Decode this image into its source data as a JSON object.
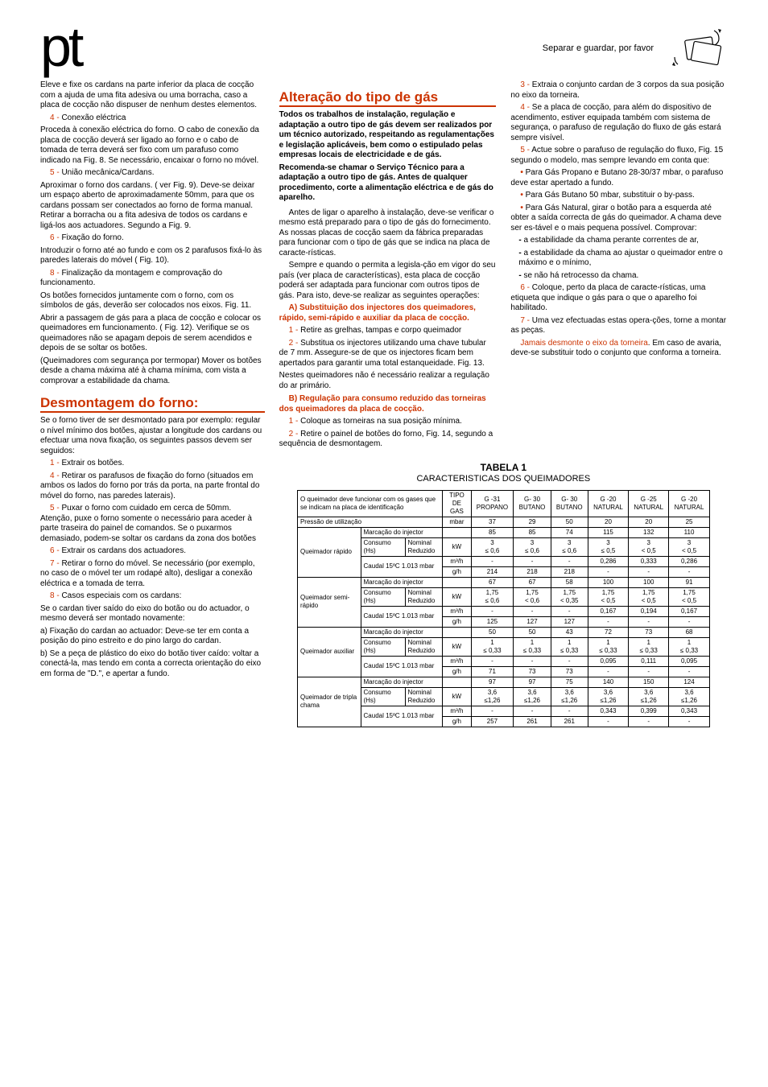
{
  "header": {
    "lang_code": "pt",
    "separar": "Separar e guardar, por favor"
  },
  "col1": {
    "p1": "Eleve e fixe os cardans na parte inferior da placa de cocção com a ajuda de uma fita adesiva ou uma borracha, caso a placa de cocção não dispuser de nenhum destes elementos.",
    "s4_label": "4 - ",
    "s4_title": "Conexão eléctrica",
    "s4_body": "Proceda à conexão eléctrica do forno. O cabo de conexão da placa de cocção deverá ser ligado ao forno e o cabo de tomada de terra deverá ser fixo com um parafuso como indicado na Fig. 8. Se necessário, encaixar o forno no móvel.",
    "s5_label": "5 - ",
    "s5_title": "União mecânica/Cardans.",
    "s5_body": "Aproximar o forno dos cardans. ( ver Fig. 9). Deve-se deixar um espaço aberto de aproximadamente 50mm, para que os cardans possam ser conectados ao forno de forma manual. Retirar a borracha ou a fita adesiva de todos os cardans e ligá-los aos actuadores. Segundo a Fig. 9.",
    "s6_label": "6 - ",
    "s6_title": "Fixação do forno.",
    "s6_body": "Introduzir o forno até ao fundo e com os 2 parafusos fixá-lo às paredes laterais do móvel ( Fig. 10).",
    "s8_label": "8 - ",
    "s8_title": "Finalização da montagem e comprovação do funcionamento.",
    "s8_body1": "Os botões fornecidos juntamente com o forno, com os símbolos de gás, deverão ser colocados nos eixos. Fig. 11.",
    "s8_body2": "Abrir a passagem de gás para a placa de cocção e colocar os queimadores em funcionamento. ( Fig. 12). Verifique se os queimadores não se apagam depois de serem acendidos e depois de se soltar os botões.",
    "s8_body3": "(Queimadores com segurança por termopar) Mover os botões desde a chama máxima até à chama mínima, com vista a comprovar a estabilidade da chama.",
    "desmont_title": "Desmontagem do forno:",
    "desmont_intro": "Se o forno tiver de ser desmontado para por exemplo: regular o nível mínimo dos botões, ajustar a longitude dos cardans ou efectuar uma nova fixação, os seguintes passos devem ser seguidos:",
    "d1_label": "1 - ",
    "d1": "Extrair os botões.",
    "d4_label": "4 - ",
    "d4": "Retirar os parafusos de fixação do forno (situados em ambos os lados do forno por trás da porta, na parte frontal do móvel do forno, nas paredes laterais).",
    "d5_label": "5 - ",
    "d5": "Puxar o forno com cuidado em cerca de 50mm. Atenção, puxe o forno somente o necessário para aceder à parte traseira do painel de comandos. Se o puxarmos demasiado, podem-se soltar os cardans da zona dos botões",
    "d6_label": "6 - ",
    "d6": "Extrair os cardans dos actuadores.",
    "d7_label": "7 - ",
    "d7": "Retirar o forno do móvel. Se necessário (por exemplo, no caso de o móvel ter um rodapé alto), desligar a conexão eléctrica e a tomada de terra.",
    "d8_label": "8 - ",
    "d8_title": "Casos especiais com os cardans:",
    "d8_body": "Se o cardan tiver saído do eixo do botão ou do actuador, o mesmo deverá ser montado novamente:",
    "d8_a": "a) Fixação do cardan ao actuador: Deve-se ter em conta a posição do pino estreito e do pino largo do cardan.",
    "d8_b": "b) Se a peça de plástico do eixo do botão tiver caído: voltar a conectá-la, mas tendo em conta a correcta orientação do eixo em forma de \"D.\", e apertar a fundo."
  },
  "col2": {
    "title": "Alteração do tipo de gás",
    "bold_intro": "Todos os trabalhos de instalação, regulação e adaptação a outro tipo de gás devem ser realizados por um técnico autorizado, respeitando as regulamentações e legislação aplicáveis, bem como o estipulado pelas empresas locais de electricidade e de gás.",
    "bold_intro2": "Recomenda-se chamar o Serviço Técnico para a adaptação a outro tipo de gás. Antes de qualquer procedimento, corte a alimentação eléctrica e de gás do aparelho.",
    "p1": "Antes de ligar o aparelho à instalação, deve-se verificar o mesmo está preparado para o tipo de gás do fornecimento. As nossas placas de cocção saem da fábrica preparadas para funcionar com o tipo de gás que se indica na placa de caracte-rísticas.",
    "p2": "Sempre e quando o permita a legisla-ção em vigor do seu país (ver placa de características), esta placa de cocção poderá ser adaptada para funcionar com outros tipos de gás. Para isto, deve-se realizar as seguintes operações:",
    "A_title": "A) Substituição dos injectores dos queimadores, rápido, semi-rápido e auxiliar da placa de cocção.",
    "A1_label": "1 - ",
    "A1": "Retire as grelhas, tampas e corpo queimador",
    "A2_label": "2 - ",
    "A2": "Substitua os injectores utilizando uma chave tubular de 7 mm. Assegure-se de que os injectores ficam bem apertados para garantir uma total estanqueidade. Fig. 13.",
    "A2b": "Nestes queimadores não é necessário realizar a regulação do ar primário.",
    "B_title": "B) Regulação para consumo reduzido das torneiras dos queimadores da placa de cocção.",
    "B1_label": "1 - ",
    "B1": "Coloque as torneiras na sua posição mínima.",
    "B2_label": "2 - ",
    "B2": "Retire o painel de botões do forno, Fig. 14, segundo a sequência de desmontagem."
  },
  "col3": {
    "s3_label": "3 - ",
    "s3": "Extraia o conjunto cardan de 3 corpos da sua posição no eixo da torneira.",
    "s4_label": "4 - ",
    "s4": "Se a placa de cocção, para além do dispositivo de acendimento, estiver equipada também com sistema de segurança, o parafuso de regulação do fluxo de gás estará sempre visível.",
    "s5_label": "5 - ",
    "s5": "Actue sobre o parafuso de regulação do fluxo, Fig. 15 segundo o modelo, mas sempre levando em conta que:",
    "b1": "Para Gás Propano e Butano 28-30/37 mbar, o parafuso deve estar apertado a fundo.",
    "b2": "Para Gás Butano 50 mbar, substituir o by-pass.",
    "b3": "Para Gás Natural, girar o botão para a  esquerda até obter a saída  correcta de gás do queimador.  A chama  deve ser es-tável  e o mais pequena possível. Comprovar:",
    "dash1": "a estabilidade da chama perante correntes de ar,",
    "dash2": "a estabilidade da chama ao ajustar o queimador entre o máximo e o mínimo,",
    "dash3": "se não há retrocesso da chama.",
    "s6_label": "6 - ",
    "s6": "Coloque, perto da placa de caracte-rísticas, uma etiqueta que indique o gás para o que o aparelho foi habilitado.",
    "s7_label": "7 - ",
    "s7": "Uma vez efectuadas estas opera-ções, torne a montar as peças.",
    "jamais": "Jamais desmonte o eixo da torneira",
    "jamais_after": ". Em caso de avaria, deve-se substituir todo o conjunto que conforma a torneira."
  },
  "table": {
    "title": "TABELA 1",
    "subtitle": "CARACTERISTICAS DOS QUEIMADORES",
    "header_text": "O queimador deve funcionar com os gases que se indicam na placa de identificação",
    "tipo_gas": "TIPO DE GAS",
    "cols": [
      "G -31 PROPANO",
      "G- 30 BUTANO",
      "G- 30 BUTANO",
      "G -20 NATURAL",
      "G -25 NATURAL",
      "G -20 NATURAL"
    ],
    "pressao": "Pressão de utilização",
    "mbar": "mbar",
    "pressao_vals": [
      "37",
      "29",
      "50",
      "20",
      "20",
      "25"
    ],
    "marcacao": "Marcação do injector",
    "consumo": "Consumo (Hs)",
    "nominal": "Nominal",
    "reduzido": "Reduzido",
    "caudal": "Caudal 15ºC 1.013 mbar",
    "kW": "kW",
    "m3h": "m³/h",
    "gh": "g/h",
    "burners": [
      {
        "name": "Queimador rápido",
        "inj": [
          "85",
          "85",
          "74",
          "115",
          "132",
          "110"
        ],
        "nom": [
          "3",
          "3",
          "3",
          "3",
          "3",
          "3"
        ],
        "red": [
          "≤ 0,6",
          "≤ 0,6",
          "≤ 0,6",
          "≤ 0,5",
          "< 0,5",
          "< 0,5"
        ],
        "m3": [
          "-",
          "-",
          "-",
          "0,286",
          "0,333",
          "0,286"
        ],
        "g": [
          "214",
          "218",
          "218",
          "-",
          "-",
          "-"
        ]
      },
      {
        "name": "Queimador semi-rápido",
        "inj": [
          "67",
          "67",
          "58",
          "100",
          "100",
          "91"
        ],
        "nom": [
          "1,75",
          "1,75",
          "1,75",
          "1,75",
          "1,75",
          "1,75"
        ],
        "red": [
          "≤ 0,6",
          "< 0,6",
          "< 0,35",
          "< 0,5",
          "< 0,5",
          "< 0,5"
        ],
        "m3": [
          "-",
          "-",
          "-",
          "0,167",
          "0,194",
          "0,167"
        ],
        "g": [
          "125",
          "127",
          "127",
          "-",
          "-",
          "-"
        ]
      },
      {
        "name": "Queimador auxiliar",
        "inj": [
          "50",
          "50",
          "43",
          "72",
          "73",
          "68"
        ],
        "nom": [
          "1",
          "1",
          "1",
          "1",
          "1",
          "1"
        ],
        "red": [
          "≤ 0,33",
          "≤ 0,33",
          "≤ 0,33",
          "≤ 0,33",
          "≤ 0,33",
          "≤ 0,33"
        ],
        "m3": [
          "-",
          "-",
          "-",
          "0,095",
          "0,111",
          "0,095"
        ],
        "g": [
          "71",
          "73",
          "73",
          "-",
          "-",
          "-"
        ]
      },
      {
        "name": "Queimador de tripla chama",
        "inj": [
          "97",
          "97",
          "75",
          "140",
          "150",
          "124"
        ],
        "nom": [
          "3,6",
          "3,6",
          "3,6",
          "3,6",
          "3,6",
          "3,6"
        ],
        "red": [
          "≤1,26",
          "≤1,26",
          "≤1,26",
          "≤1,26",
          "≤1,26",
          "≤1,26"
        ],
        "m3": [
          "-",
          "-",
          "-",
          "0,343",
          "0,399",
          "0,343"
        ],
        "g": [
          "257",
          "261",
          "261",
          "-",
          "-",
          "-"
        ]
      }
    ]
  }
}
